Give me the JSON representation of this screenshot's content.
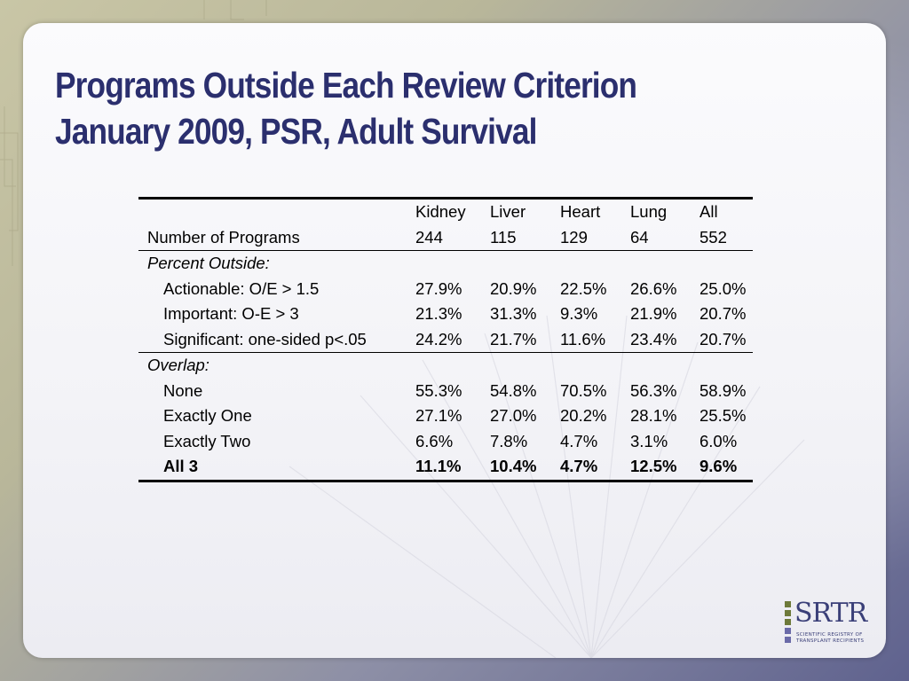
{
  "slide": {
    "title_line_1": "Programs Outside Each Review Criterion",
    "title_line_2": "January 2009, PSR, Adult Survival"
  },
  "table": {
    "header_row_1": [
      "",
      "Kidney",
      "Liver",
      "Heart",
      "Lung",
      "All"
    ],
    "header_row_2": [
      "Number of Programs",
      "244",
      "115",
      "129",
      "64",
      "552"
    ],
    "section_1_label": "Percent Outside:",
    "section_1_rows": [
      {
        "label": "Actionable: O/E > 1.5",
        "values": [
          "27.9%",
          "20.9%",
          "22.5%",
          "26.6%",
          "25.0%"
        ]
      },
      {
        "label": "Important: O-E > 3",
        "values": [
          "21.3%",
          "31.3%",
          "9.3%",
          "21.9%",
          "20.7%"
        ]
      },
      {
        "label": "Significant: one-sided p<.05",
        "values": [
          "24.2%",
          "21.7%",
          "11.6%",
          "23.4%",
          "20.7%"
        ]
      }
    ],
    "section_2_label": "Overlap:",
    "section_2_rows": [
      {
        "label": "None",
        "values": [
          "55.3%",
          "54.8%",
          "70.5%",
          "56.3%",
          "58.9%"
        ]
      },
      {
        "label": "Exactly One",
        "values": [
          "27.1%",
          "27.0%",
          "20.2%",
          "28.1%",
          "25.5%"
        ]
      },
      {
        "label": "Exactly Two",
        "values": [
          "6.6%",
          "7.8%",
          "4.7%",
          "3.1%",
          "6.0%"
        ]
      },
      {
        "label": "All 3",
        "values": [
          "11.1%",
          "10.4%",
          "4.7%",
          "12.5%",
          "9.6%"
        ]
      }
    ]
  },
  "logo": {
    "mark": "SRTR",
    "sub_line_1": "SCIENTIFIC REGISTRY OF",
    "sub_line_2": "TRANSPLANT RECIPIENTS"
  },
  "colors": {
    "title": "#2b2f6e",
    "logo": "#3a3f78",
    "logo_dot_green": "#6e7a3a",
    "logo_dot_purple": "#6a6aa8"
  }
}
